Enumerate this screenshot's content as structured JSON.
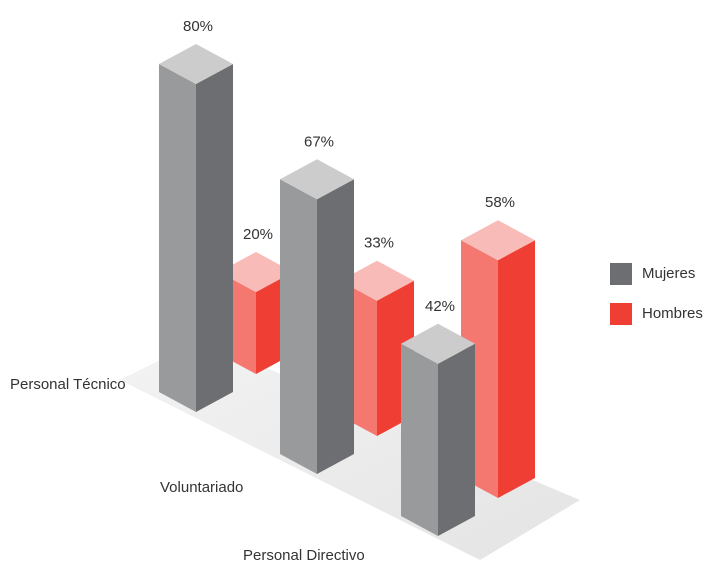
{
  "chart_data": {
    "type": "bar3d",
    "categories": [
      "Personal Técnico",
      "Voluntariado",
      "Personal Directivo"
    ],
    "series": [
      {
        "name": "Mujeres",
        "color": "#6d6e71",
        "values": [
          80,
          67,
          42
        ],
        "value_labels": [
          "80%",
          "67%",
          "42%"
        ]
      },
      {
        "name": "Hombres",
        "color": "#ef3e33",
        "values": [
          20,
          33,
          58
        ],
        "value_labels": [
          "20%",
          "33%",
          "58%"
        ]
      }
    ],
    "legend": "right"
  }
}
